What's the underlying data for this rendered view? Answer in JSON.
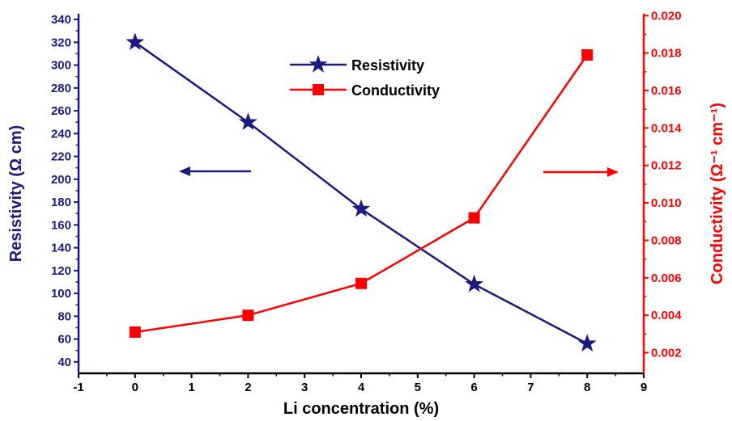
{
  "colors": {
    "resistivity": "#1a1a80",
    "conductivity": "#ff0000",
    "axis": "#000000"
  },
  "chart_data": {
    "type": "line",
    "x": [
      0,
      2,
      4,
      6,
      8
    ],
    "xlabel": "Li concentration (%)",
    "xlim": [
      -1,
      9
    ],
    "xticks": [
      "-1",
      "0",
      "1",
      "2",
      "3",
      "4",
      "5",
      "6",
      "7",
      "8",
      "9"
    ],
    "y_left": {
      "label": "Resistivity (Ω cm)",
      "lim": [
        30,
        345
      ],
      "ticks": [
        "40",
        "60",
        "80",
        "100",
        "120",
        "140",
        "160",
        "180",
        "200",
        "220",
        "240",
        "260",
        "280",
        "300",
        "320",
        "340"
      ]
    },
    "y_right": {
      "label": "Conductivity (Ω⁻¹ cm⁻¹)",
      "lim": [
        0.0009,
        0.0201
      ],
      "ticks": [
        "0.002",
        "0.004",
        "0.006",
        "0.008",
        "0.010",
        "0.012",
        "0.014",
        "0.016",
        "0.018",
        "0.020"
      ]
    },
    "series": [
      {
        "name": "Resistivity",
        "axis": "left",
        "marker": "star",
        "values": [
          320,
          250,
          174,
          108,
          56
        ]
      },
      {
        "name": "Conductivity",
        "axis": "right",
        "marker": "square",
        "values": [
          0.0031,
          0.004,
          0.0057,
          0.0092,
          0.0179
        ]
      }
    ],
    "annotations": [
      {
        "type": "arrow",
        "direction": "left",
        "series": "Resistivity"
      },
      {
        "type": "arrow",
        "direction": "right",
        "series": "Conductivity"
      }
    ],
    "legend": "top-center",
    "grid": false
  }
}
